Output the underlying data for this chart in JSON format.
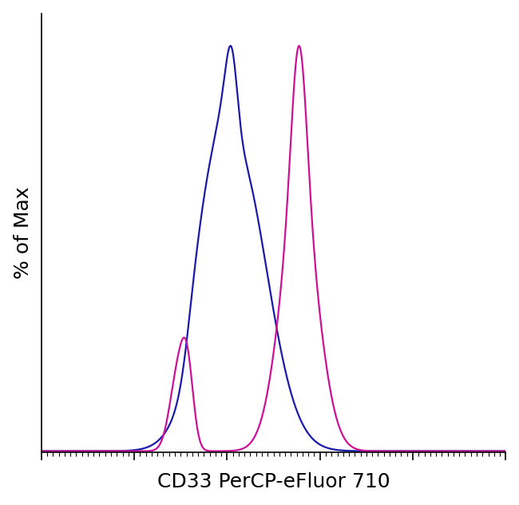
{
  "title": "",
  "xlabel": "CD33 PerCP-eFluor 710",
  "ylabel": "% of Max",
  "xlim": [
    0,
    1
  ],
  "ylim": [
    0,
    1.08
  ],
  "blue_color": "#1a1aaa",
  "magenta_color": "#cc1199",
  "line_width": 1.6,
  "background_color": "#ffffff",
  "xlabel_fontsize": 18,
  "ylabel_fontsize": 18,
  "figsize": [
    6.5,
    6.32
  ],
  "dpi": 100
}
